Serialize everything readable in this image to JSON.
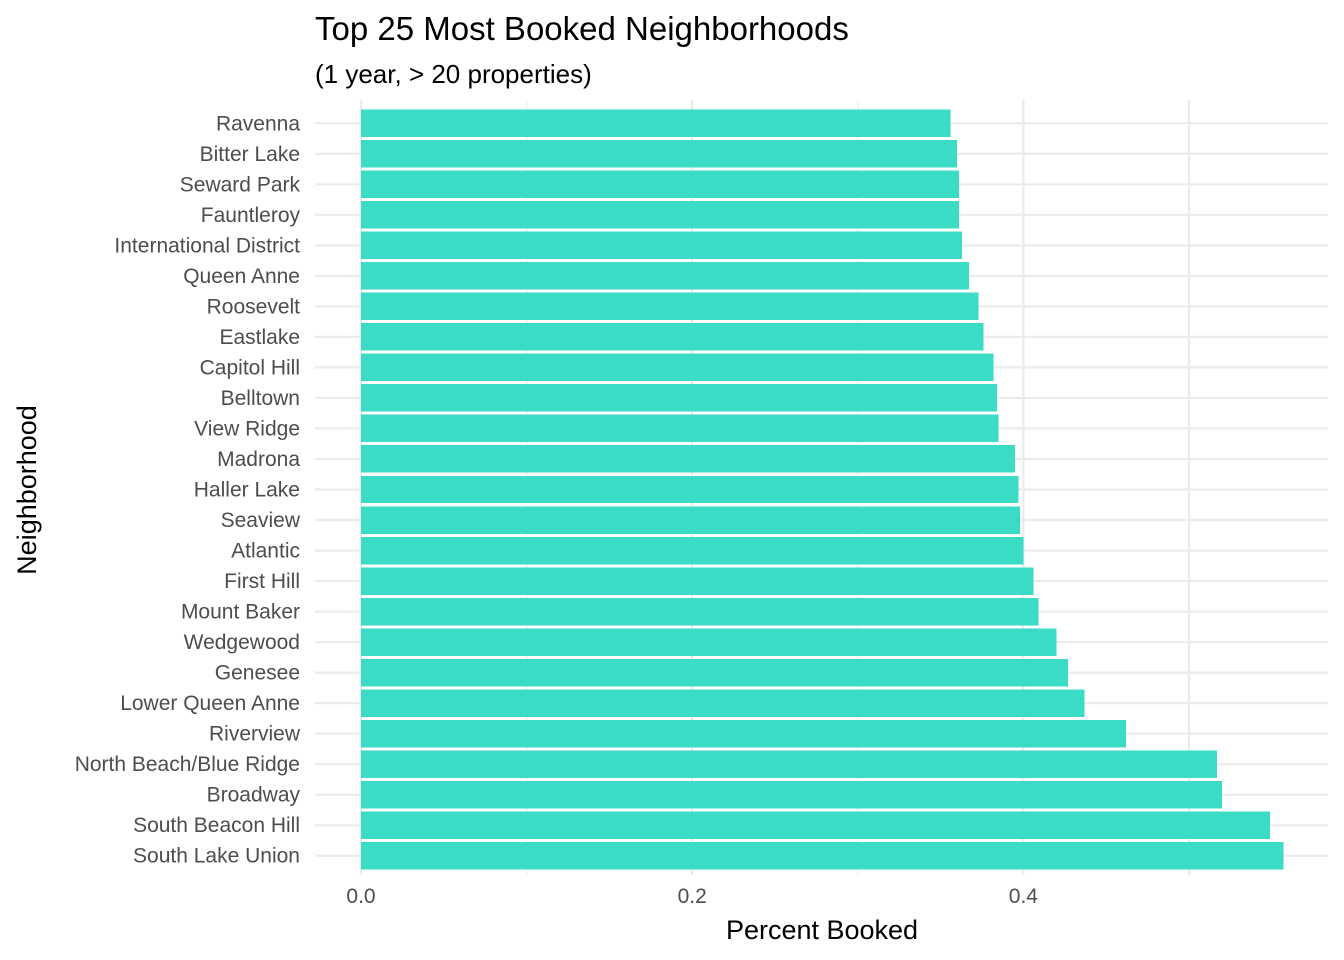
{
  "chart_data": {
    "type": "bar",
    "orientation": "horizontal",
    "title": "Top 25 Most Booked Neighborhoods",
    "subtitle": "(1 year, > 20 properties)",
    "xlabel": "Percent Booked",
    "ylabel": "Neighborhood",
    "xlim": [
      0,
      0.558
    ],
    "x_ticks": [
      {
        "value": 0.0,
        "label": "0.0"
      },
      {
        "value": 0.2,
        "label": "0.2"
      },
      {
        "value": 0.4,
        "label": "0.4"
      }
    ],
    "x_minor_ticks": [
      0.1,
      0.3,
      0.5
    ],
    "grid": true,
    "bar_color": "#3ADCC6",
    "categories": [
      "South Lake Union",
      "South Beacon Hill",
      "Broadway",
      "North Beach/Blue Ridge",
      "Riverview",
      "Lower Queen Anne",
      "Genesee",
      "Wedgewood",
      "Mount Baker",
      "First Hill",
      "Atlantic",
      "Seaview",
      "Haller Lake",
      "Madrona",
      "View Ridge",
      "Belltown",
      "Capitol Hill",
      "Eastlake",
      "Roosevelt",
      "Queen Anne",
      "International District",
      "Fauntleroy",
      "Seward Park",
      "Bitter Lake",
      "Ravenna"
    ],
    "values": [
      0.557,
      0.549,
      0.52,
      0.517,
      0.462,
      0.437,
      0.427,
      0.42,
      0.409,
      0.406,
      0.4,
      0.398,
      0.397,
      0.395,
      0.385,
      0.384,
      0.382,
      0.376,
      0.373,
      0.367,
      0.363,
      0.361,
      0.361,
      0.36,
      0.356
    ]
  }
}
